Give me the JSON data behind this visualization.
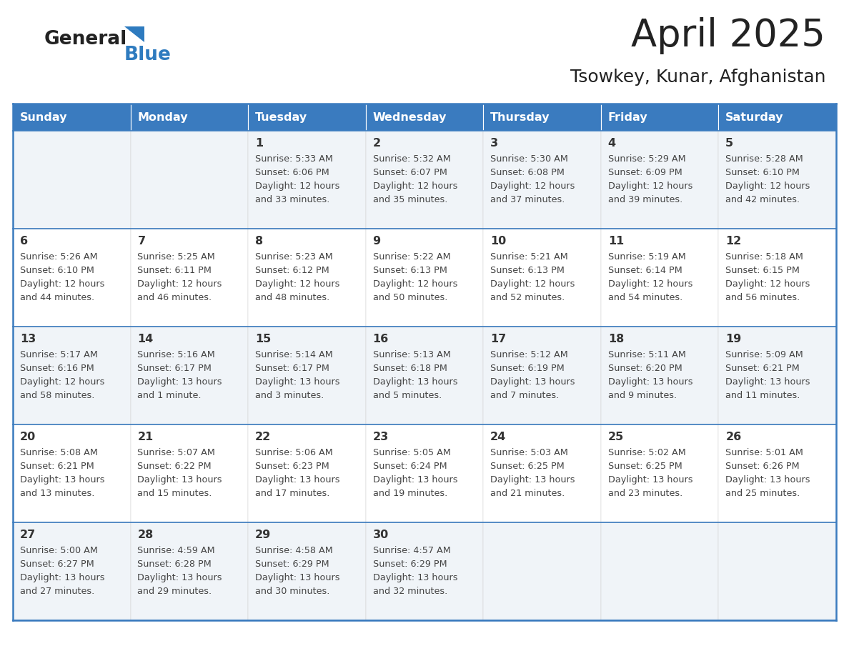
{
  "title": "April 2025",
  "subtitle": "Tsowkey, Kunar, Afghanistan",
  "header_color": "#3a7bbf",
  "header_text_color": "#ffffff",
  "days_of_week": [
    "Sunday",
    "Monday",
    "Tuesday",
    "Wednesday",
    "Thursday",
    "Friday",
    "Saturday"
  ],
  "cell_bg_even": "#f0f4f8",
  "cell_bg_odd": "#ffffff",
  "border_color": "#3a7bbf",
  "text_color": "#444444",
  "day_num_color": "#333333",
  "calendar": [
    [
      {
        "day": "",
        "sunrise": "",
        "sunset": "",
        "daylight": ""
      },
      {
        "day": "",
        "sunrise": "",
        "sunset": "",
        "daylight": ""
      },
      {
        "day": "1",
        "sunrise": "5:33 AM",
        "sunset": "6:06 PM",
        "daylight": "12 hours and 33 minutes."
      },
      {
        "day": "2",
        "sunrise": "5:32 AM",
        "sunset": "6:07 PM",
        "daylight": "12 hours and 35 minutes."
      },
      {
        "day": "3",
        "sunrise": "5:30 AM",
        "sunset": "6:08 PM",
        "daylight": "12 hours and 37 minutes."
      },
      {
        "day": "4",
        "sunrise": "5:29 AM",
        "sunset": "6:09 PM",
        "daylight": "12 hours and 39 minutes."
      },
      {
        "day": "5",
        "sunrise": "5:28 AM",
        "sunset": "6:10 PM",
        "daylight": "12 hours and 42 minutes."
      }
    ],
    [
      {
        "day": "6",
        "sunrise": "5:26 AM",
        "sunset": "6:10 PM",
        "daylight": "12 hours and 44 minutes."
      },
      {
        "day": "7",
        "sunrise": "5:25 AM",
        "sunset": "6:11 PM",
        "daylight": "12 hours and 46 minutes."
      },
      {
        "day": "8",
        "sunrise": "5:23 AM",
        "sunset": "6:12 PM",
        "daylight": "12 hours and 48 minutes."
      },
      {
        "day": "9",
        "sunrise": "5:22 AM",
        "sunset": "6:13 PM",
        "daylight": "12 hours and 50 minutes."
      },
      {
        "day": "10",
        "sunrise": "5:21 AM",
        "sunset": "6:13 PM",
        "daylight": "12 hours and 52 minutes."
      },
      {
        "day": "11",
        "sunrise": "5:19 AM",
        "sunset": "6:14 PM",
        "daylight": "12 hours and 54 minutes."
      },
      {
        "day": "12",
        "sunrise": "5:18 AM",
        "sunset": "6:15 PM",
        "daylight": "12 hours and 56 minutes."
      }
    ],
    [
      {
        "day": "13",
        "sunrise": "5:17 AM",
        "sunset": "6:16 PM",
        "daylight": "12 hours and 58 minutes."
      },
      {
        "day": "14",
        "sunrise": "5:16 AM",
        "sunset": "6:17 PM",
        "daylight": "13 hours and 1 minute."
      },
      {
        "day": "15",
        "sunrise": "5:14 AM",
        "sunset": "6:17 PM",
        "daylight": "13 hours and 3 minutes."
      },
      {
        "day": "16",
        "sunrise": "5:13 AM",
        "sunset": "6:18 PM",
        "daylight": "13 hours and 5 minutes."
      },
      {
        "day": "17",
        "sunrise": "5:12 AM",
        "sunset": "6:19 PM",
        "daylight": "13 hours and 7 minutes."
      },
      {
        "day": "18",
        "sunrise": "5:11 AM",
        "sunset": "6:20 PM",
        "daylight": "13 hours and 9 minutes."
      },
      {
        "day": "19",
        "sunrise": "5:09 AM",
        "sunset": "6:21 PM",
        "daylight": "13 hours and 11 minutes."
      }
    ],
    [
      {
        "day": "20",
        "sunrise": "5:08 AM",
        "sunset": "6:21 PM",
        "daylight": "13 hours and 13 minutes."
      },
      {
        "day": "21",
        "sunrise": "5:07 AM",
        "sunset": "6:22 PM",
        "daylight": "13 hours and 15 minutes."
      },
      {
        "day": "22",
        "sunrise": "5:06 AM",
        "sunset": "6:23 PM",
        "daylight": "13 hours and 17 minutes."
      },
      {
        "day": "23",
        "sunrise": "5:05 AM",
        "sunset": "6:24 PM",
        "daylight": "13 hours and 19 minutes."
      },
      {
        "day": "24",
        "sunrise": "5:03 AM",
        "sunset": "6:25 PM",
        "daylight": "13 hours and 21 minutes."
      },
      {
        "day": "25",
        "sunrise": "5:02 AM",
        "sunset": "6:25 PM",
        "daylight": "13 hours and 23 minutes."
      },
      {
        "day": "26",
        "sunrise": "5:01 AM",
        "sunset": "6:26 PM",
        "daylight": "13 hours and 25 minutes."
      }
    ],
    [
      {
        "day": "27",
        "sunrise": "5:00 AM",
        "sunset": "6:27 PM",
        "daylight": "13 hours and 27 minutes."
      },
      {
        "day": "28",
        "sunrise": "4:59 AM",
        "sunset": "6:28 PM",
        "daylight": "13 hours and 29 minutes."
      },
      {
        "day": "29",
        "sunrise": "4:58 AM",
        "sunset": "6:29 PM",
        "daylight": "13 hours and 30 minutes."
      },
      {
        "day": "30",
        "sunrise": "4:57 AM",
        "sunset": "6:29 PM",
        "daylight": "13 hours and 32 minutes."
      },
      {
        "day": "",
        "sunrise": "",
        "sunset": "",
        "daylight": ""
      },
      {
        "day": "",
        "sunrise": "",
        "sunset": "",
        "daylight": ""
      },
      {
        "day": "",
        "sunrise": "",
        "sunset": "",
        "daylight": ""
      }
    ]
  ]
}
